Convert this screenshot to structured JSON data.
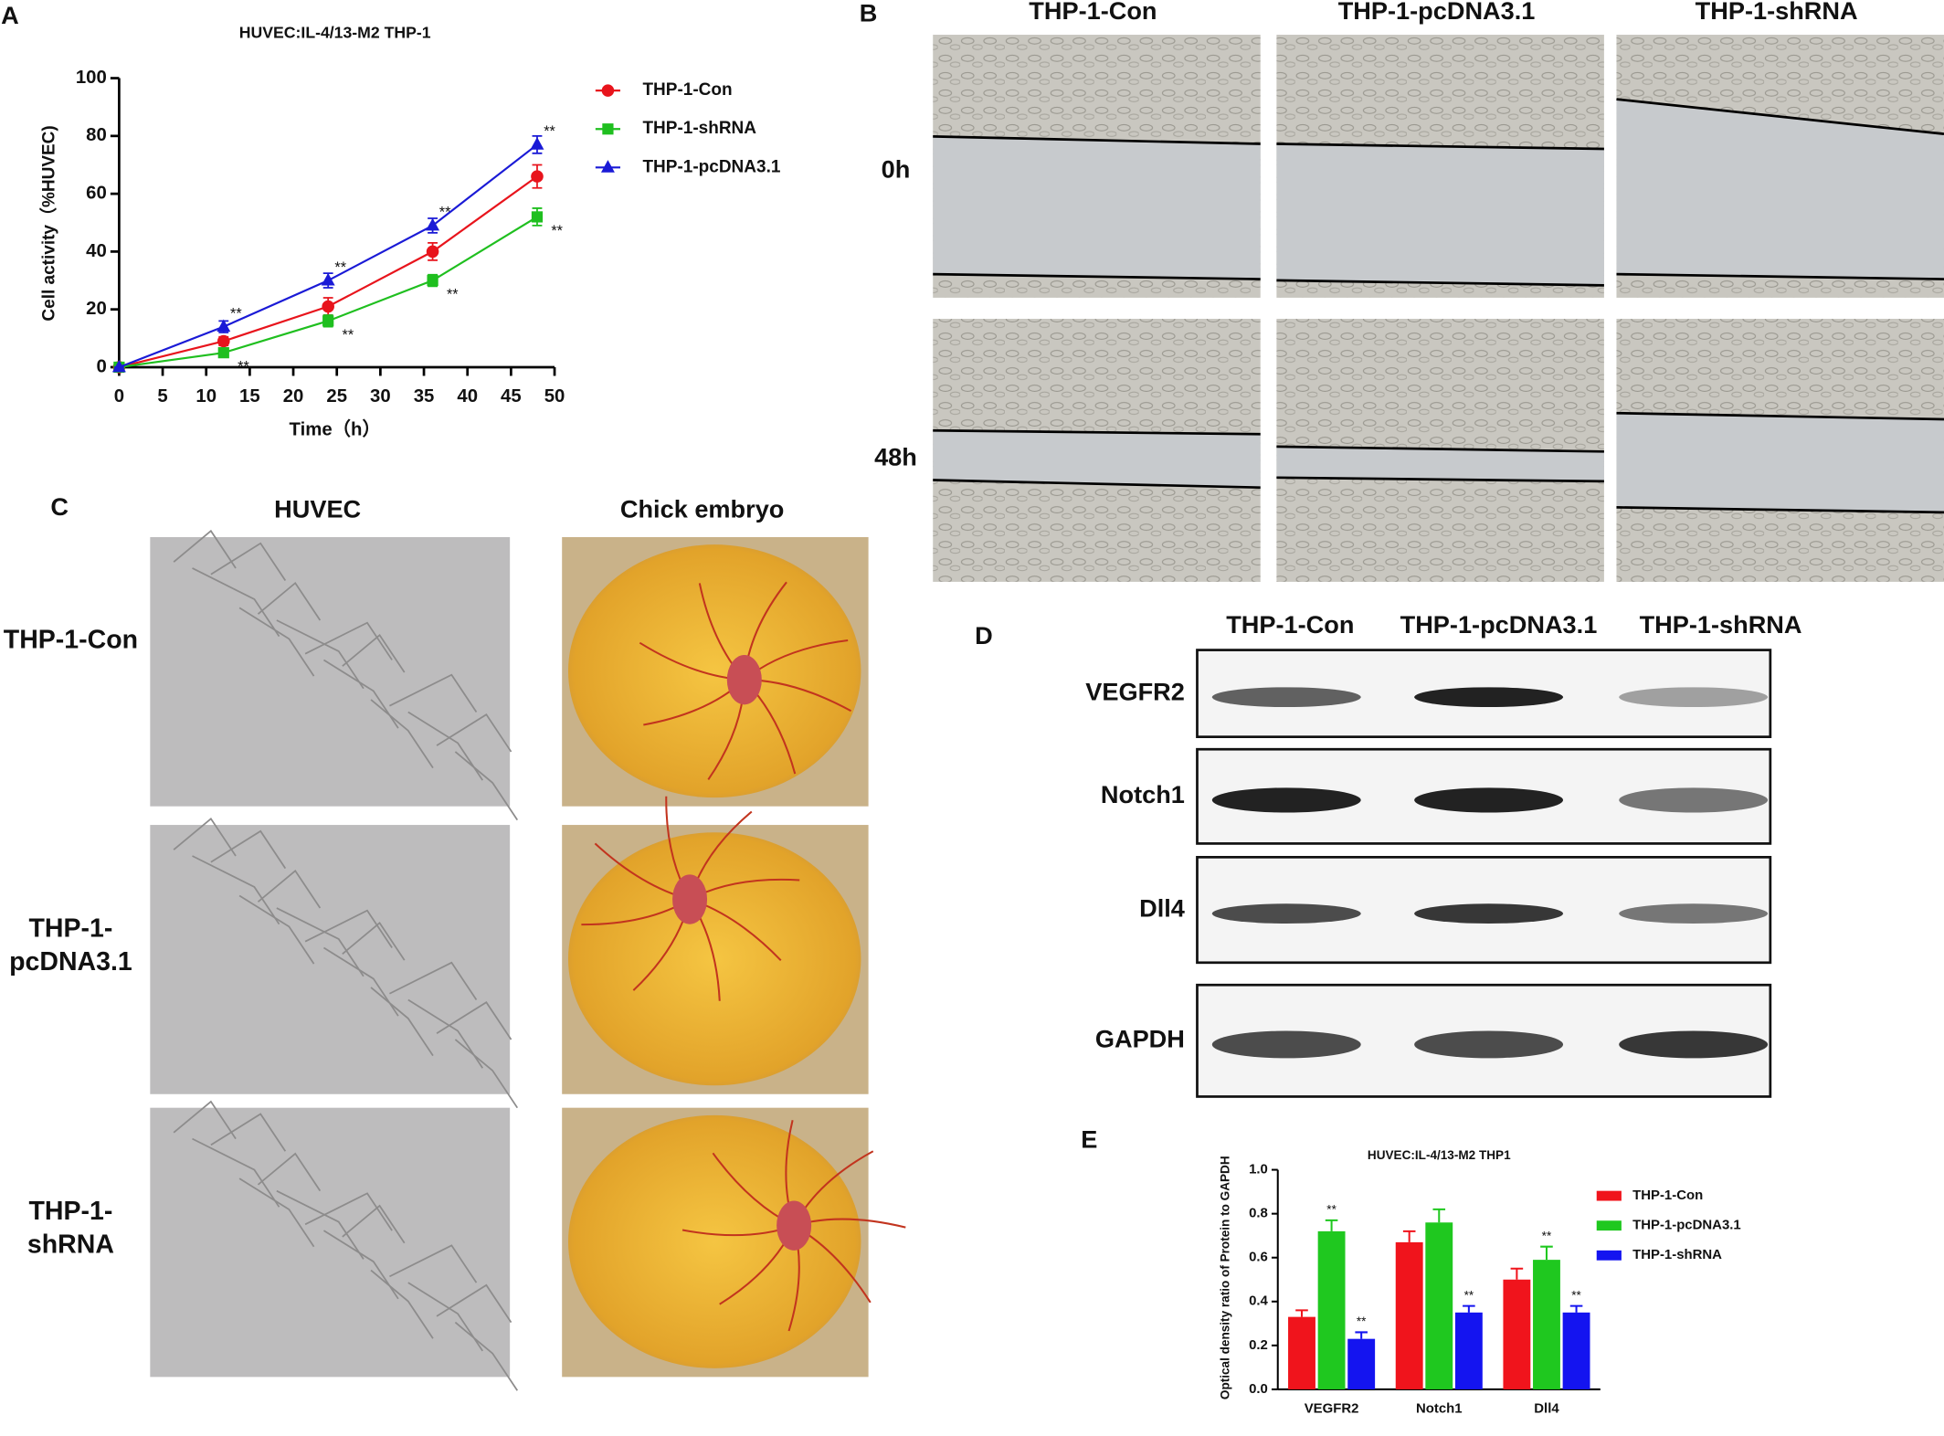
{
  "panel_labels": [
    "A",
    "B",
    "C",
    "D",
    "E"
  ],
  "chart_data": [
    {
      "type": "line",
      "title": "HUVEC:IL-4/13-M2 THP-1",
      "x_label": "Time（h）",
      "y_label": "Cell activity（%HUVEC)",
      "x": [
        0,
        12,
        24,
        36,
        48
      ],
      "xlim": [
        0,
        50
      ],
      "xticks": [
        0,
        5,
        10,
        15,
        20,
        25,
        30,
        35,
        40,
        45,
        50
      ],
      "ylim": [
        0,
        100
      ],
      "yticks": [
        0,
        20,
        40,
        60,
        80,
        100
      ],
      "series": [
        {
          "name": "THP-1-Con",
          "color": "#e8141c",
          "marker": "circle",
          "values": [
            0,
            9,
            21,
            40,
            66
          ],
          "errors": [
            0,
            1.5,
            3,
            3,
            4
          ],
          "annotations": [
            null,
            null,
            null,
            null,
            null
          ]
        },
        {
          "name": "THP-1-shRNA",
          "color": "#1fbf1f",
          "marker": "square",
          "values": [
            0,
            5,
            16,
            30,
            52
          ],
          "errors": [
            0,
            1,
            2,
            2,
            3
          ],
          "annotations": [
            null,
            "**",
            "**",
            "**",
            "**"
          ]
        },
        {
          "name": "THP-1-pcDNA3.1",
          "color": "#1a1ad6",
          "marker": "triangle",
          "values": [
            0,
            14,
            30,
            49,
            77
          ],
          "errors": [
            0,
            2,
            2.5,
            2.5,
            3
          ],
          "annotations": [
            null,
            "**",
            "**",
            "**",
            "**"
          ]
        }
      ]
    },
    {
      "type": "bar",
      "title": "HUVEC:IL-4/13-M2 THP1",
      "y_label": "Optical density ratio of Protein to GAPDH",
      "categories": [
        "VEGFR2",
        "Notch1",
        "Dll4"
      ],
      "ylim": [
        0,
        1
      ],
      "yticks": [
        {
          "value": 0,
          "label": "0.0"
        },
        0.2,
        0.4,
        0.6,
        0.8,
        {
          "value": 1,
          "label": "1.0"
        }
      ],
      "series": [
        {
          "name": "THP-1-Con",
          "color": "#f0141c",
          "values": [
            0.33,
            0.67,
            0.5
          ],
          "errors": [
            0.03,
            0.05,
            0.05
          ],
          "annotations": [
            null,
            null,
            null
          ]
        },
        {
          "name": "THP-1-pcDNA3.1",
          "color": "#1fc81f",
          "values": [
            0.72,
            0.76,
            0.59
          ],
          "errors": [
            0.05,
            0.06,
            0.06
          ],
          "annotations": [
            "**",
            null,
            "**"
          ]
        },
        {
          "name": "THP-1-shRNA",
          "color": "#1414f0",
          "values": [
            0.23,
            0.35,
            0.35
          ],
          "errors": [
            0.03,
            0.03,
            0.03
          ],
          "annotations": [
            "**",
            "**",
            "**"
          ]
        }
      ]
    }
  ],
  "panel_b": {
    "columns": [
      "THP-1-Con",
      "THP-1-pcDNA3.1",
      "THP-1-shRNA"
    ],
    "rows": [
      "0h",
      "48h"
    ]
  },
  "panel_c": {
    "columns": [
      "HUVEC",
      "Chick embryo"
    ],
    "rows": [
      [
        "THP-1-Con"
      ],
      [
        "THP-1-",
        "pcDNA3.1"
      ],
      [
        "THP-1-",
        "shRNA"
      ]
    ]
  },
  "panel_d": {
    "columns": [
      "THP-1-Con",
      "THP-1-pcDNA3.1",
      "THP-1-shRNA"
    ],
    "rows": [
      "VEGFR2",
      "Notch1",
      "Dll4",
      "GAPDH"
    ]
  }
}
